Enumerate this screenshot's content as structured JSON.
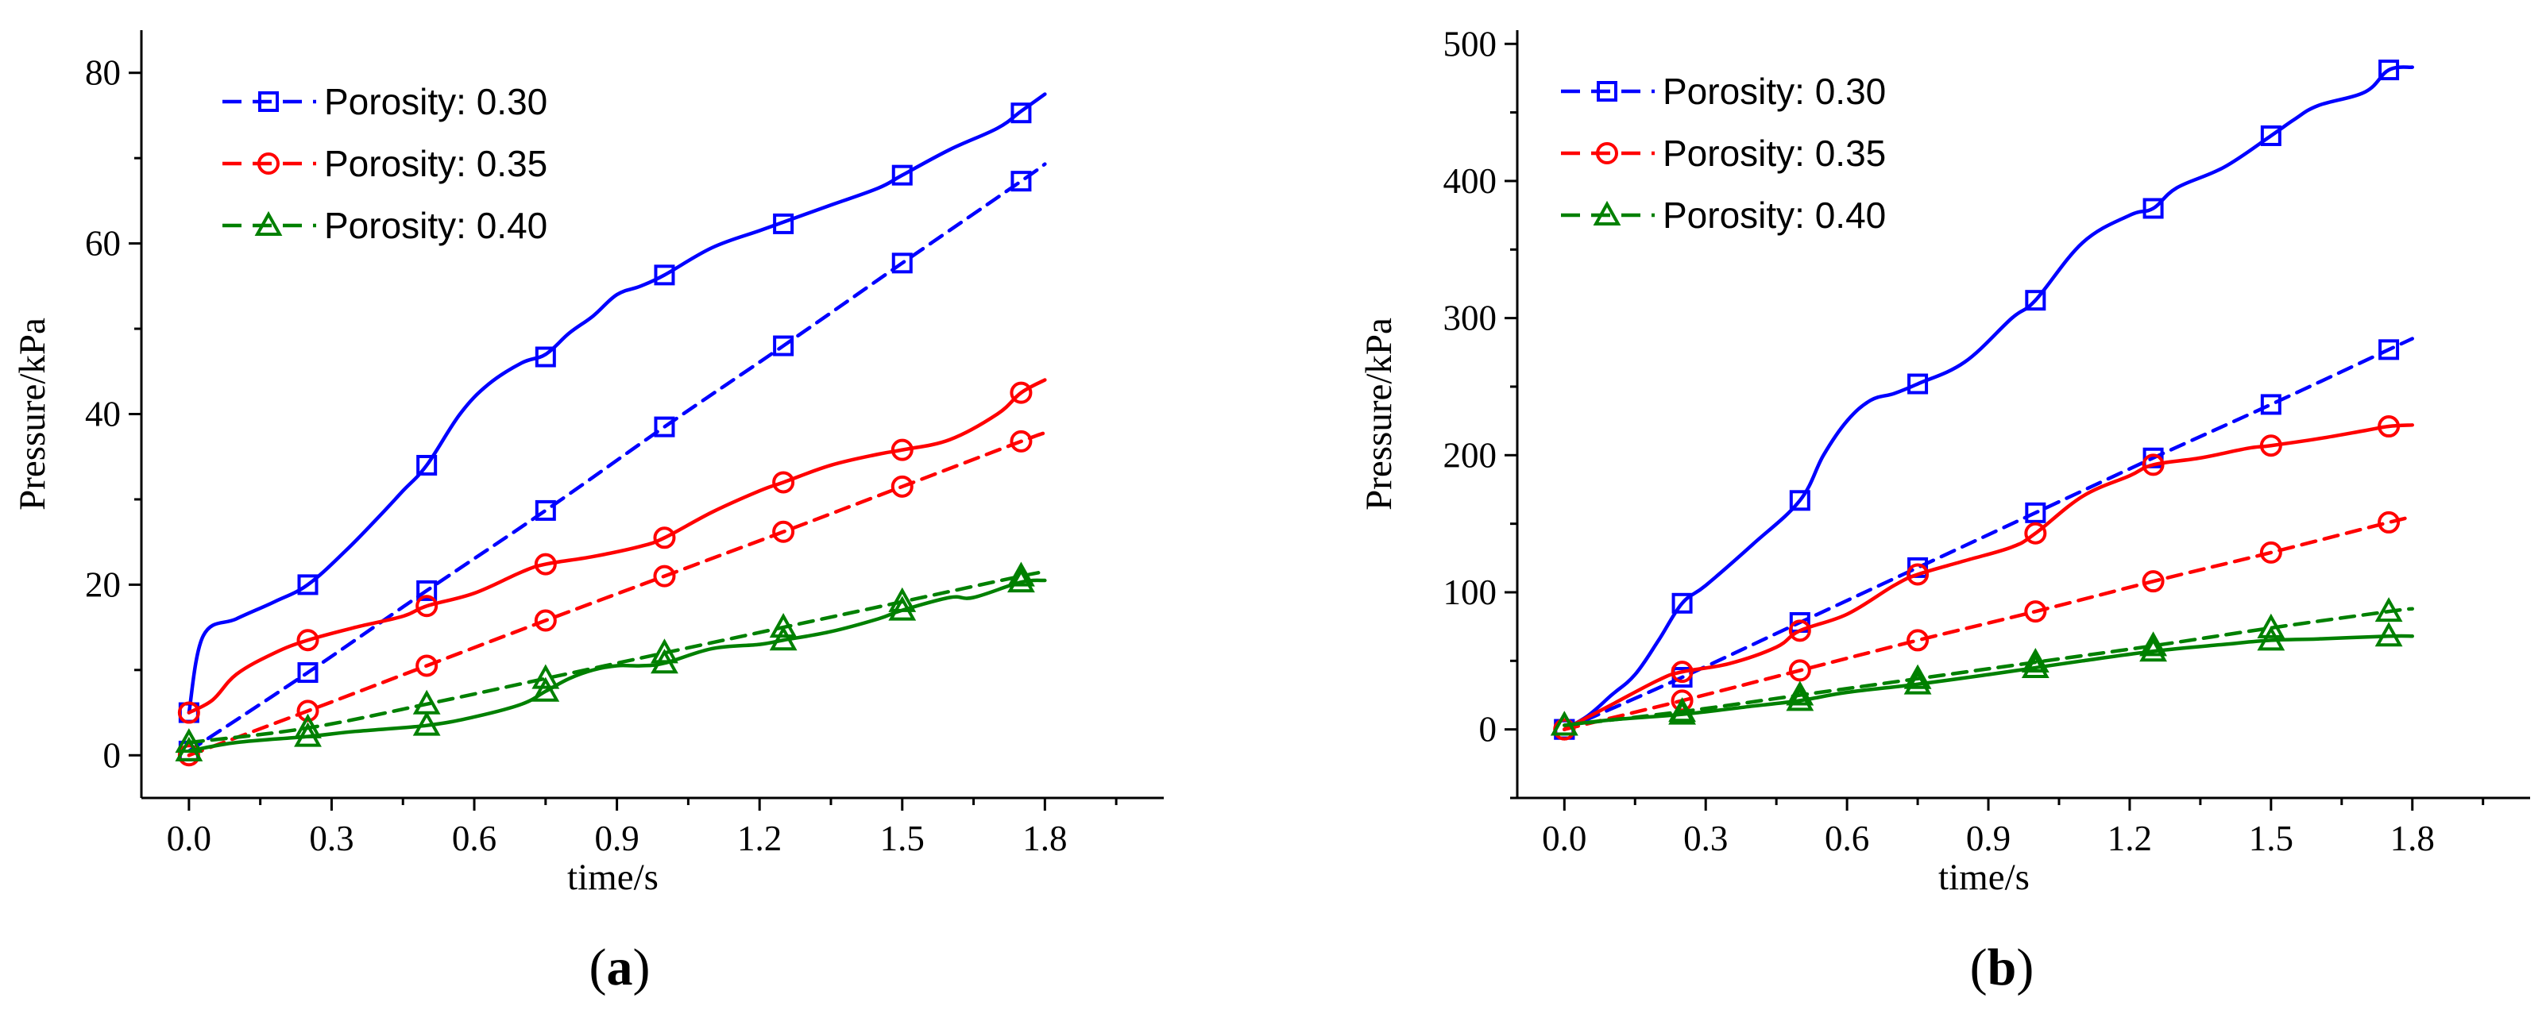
{
  "chart_data": [
    {
      "type": "line",
      "panel_label": "a",
      "xlabel": "time/s",
      "ylabel": "Pressure/kPa",
      "xlim": [
        -0.1,
        2.05
      ],
      "ylim": [
        -5,
        85
      ],
      "xticks": [
        0.0,
        0.3,
        0.6,
        0.9,
        1.2,
        1.5,
        1.8
      ],
      "xtick_labels": [
        "0.0",
        "0.3",
        "0.6",
        "0.9",
        "1.2",
        "1.5",
        "1.8"
      ],
      "yticks": [
        0,
        20,
        40,
        60,
        80
      ],
      "ytick_labels": [
        "0",
        "20",
        "40",
        "60",
        "80"
      ],
      "legend": [
        "Porosity: 0.30",
        "Porosity: 0.35",
        "Porosity: 0.40"
      ],
      "series": [
        {
          "name": "Porosity: 0.30",
          "style": "solid",
          "marker": "square",
          "color": "#0000ff",
          "x": [
            0.0,
            0.03,
            0.1,
            0.18,
            0.25,
            0.33,
            0.4,
            0.45,
            0.5,
            0.57,
            0.63,
            0.7,
            0.75,
            0.8,
            0.85,
            0.9,
            0.95,
            1.0,
            1.1,
            1.2,
            1.25,
            1.35,
            1.45,
            1.5,
            1.6,
            1.7,
            1.75,
            1.8
          ],
          "y": [
            5,
            14,
            16,
            18,
            20,
            24,
            28,
            31,
            34,
            40,
            43.5,
            46,
            47,
            49.5,
            51.5,
            54,
            55,
            56.3,
            59.5,
            61.5,
            62.5,
            64.5,
            66.5,
            68,
            71,
            73.5,
            75.5,
            77.5
          ],
          "marker_x": [
            0.0,
            0.25,
            0.5,
            0.75,
            1.0,
            1.25,
            1.5,
            1.75
          ],
          "marker_y": [
            5,
            20,
            34,
            46.7,
            56.3,
            62.3,
            68,
            75.3
          ]
        },
        {
          "name": "Porosity: 0.30",
          "style": "dashed",
          "marker": "square",
          "color": "#0000ff",
          "x": [
            0.0,
            0.25,
            0.5,
            0.75,
            1.0,
            1.25,
            1.5,
            1.75,
            1.8
          ],
          "y": [
            0.5,
            9.7,
            19.3,
            28.7,
            38.5,
            48,
            57.7,
            67.3,
            69.3
          ],
          "marker_x": [
            0.0,
            0.25,
            0.5,
            0.75,
            1.0,
            1.25,
            1.5,
            1.75
          ],
          "marker_y": [
            0.5,
            9.7,
            19.3,
            28.7,
            38.5,
            48,
            57.7,
            67.3
          ]
        },
        {
          "name": "Porosity: 0.35",
          "style": "solid",
          "marker": "circle",
          "color": "#ff0000",
          "x": [
            0.0,
            0.05,
            0.1,
            0.18,
            0.25,
            0.35,
            0.45,
            0.5,
            0.6,
            0.7,
            0.75,
            0.85,
            0.95,
            1.0,
            1.1,
            1.2,
            1.25,
            1.35,
            1.45,
            1.5,
            1.6,
            1.7,
            1.75,
            1.8
          ],
          "y": [
            5,
            6.5,
            9.5,
            12,
            13.5,
            15,
            16.3,
            17.5,
            19,
            21.5,
            22.4,
            23.3,
            24.5,
            25.5,
            28.5,
            31,
            32,
            34,
            35.3,
            35.8,
            37,
            40,
            42.5,
            44
          ],
          "marker_x": [
            0.0,
            0.25,
            0.5,
            0.75,
            1.0,
            1.25,
            1.5,
            1.75
          ],
          "marker_y": [
            5,
            13.5,
            17.5,
            22.4,
            25.5,
            32,
            35.8,
            42.5
          ]
        },
        {
          "name": "Porosity: 0.35",
          "style": "dashed",
          "marker": "circle",
          "color": "#ff0000",
          "x": [
            0.0,
            0.25,
            0.5,
            0.75,
            1.0,
            1.25,
            1.5,
            1.75,
            1.8
          ],
          "y": [
            0,
            5.2,
            10.5,
            15.8,
            21,
            26.2,
            31.5,
            36.8,
            37.8
          ],
          "marker_x": [
            0.0,
            0.25,
            0.5,
            0.75,
            1.0,
            1.25,
            1.5,
            1.75
          ],
          "marker_y": [
            0,
            5.2,
            10.5,
            15.8,
            21,
            26.2,
            31.5,
            36.8
          ]
        },
        {
          "name": "Porosity: 0.40",
          "style": "solid",
          "marker": "triangle",
          "color": "#008000",
          "x": [
            0.0,
            0.1,
            0.25,
            0.35,
            0.5,
            0.6,
            0.7,
            0.75,
            0.8,
            0.85,
            0.9,
            0.95,
            1.0,
            1.1,
            1.2,
            1.25,
            1.35,
            1.45,
            1.5,
            1.6,
            1.65,
            1.75,
            1.8
          ],
          "y": [
            0.5,
            1.5,
            2.2,
            2.8,
            3.5,
            4.5,
            6,
            7.5,
            9,
            10,
            10.5,
            10.5,
            10.8,
            12.5,
            13,
            13.5,
            14.5,
            16,
            17,
            18.5,
            18.5,
            20.3,
            20.5
          ],
          "marker_x": [
            0.0,
            0.25,
            0.5,
            0.75,
            1.0,
            1.25,
            1.5,
            1.75
          ],
          "marker_y": [
            0.5,
            2.2,
            3.5,
            7.5,
            10.8,
            13.5,
            17,
            20.3
          ]
        },
        {
          "name": "Porosity: 0.40",
          "style": "dashed",
          "marker": "triangle",
          "color": "#008000",
          "x": [
            0.0,
            0.25,
            0.5,
            0.75,
            1.0,
            1.25,
            1.5,
            1.75,
            1.8
          ],
          "y": [
            1.5,
            3.2,
            6,
            9,
            12,
            15,
            18,
            21,
            21.5
          ],
          "marker_x": [
            0.0,
            0.25,
            0.5,
            0.75,
            1.0,
            1.25,
            1.5,
            1.75
          ],
          "marker_y": [
            1.5,
            3.2,
            6,
            9,
            12,
            15,
            18,
            21
          ]
        }
      ]
    },
    {
      "type": "line",
      "panel_label": "b",
      "xlabel": "time/s",
      "ylabel": "Pressure/kPa",
      "xlim": [
        -0.1,
        2.05
      ],
      "ylim": [
        -50,
        510
      ],
      "xticks": [
        0.0,
        0.3,
        0.6,
        0.9,
        1.2,
        1.5,
        1.8
      ],
      "xtick_labels": [
        "0.0",
        "0.3",
        "0.6",
        "0.9",
        "1.2",
        "1.5",
        "1.8"
      ],
      "yticks": [
        0,
        100,
        200,
        300,
        400,
        500
      ],
      "ytick_labels": [
        "0",
        "100",
        "200",
        "300",
        "400",
        "500"
      ],
      "legend": [
        "Porosity: 0.30",
        "Porosity: 0.35",
        "Porosity: 0.40"
      ],
      "series": [
        {
          "name": "Porosity: 0.30",
          "style": "solid",
          "marker": "square",
          "color": "#0000ff",
          "x": [
            0.0,
            0.05,
            0.1,
            0.15,
            0.2,
            0.25,
            0.3,
            0.4,
            0.5,
            0.55,
            0.6,
            0.65,
            0.7,
            0.75,
            0.85,
            0.95,
            1.0,
            1.1,
            1.2,
            1.25,
            1.3,
            1.4,
            1.5,
            1.55,
            1.6,
            1.7,
            1.75,
            1.8
          ],
          "y": [
            0,
            10,
            25,
            40,
            65,
            92,
            105,
            135,
            167,
            200,
            225,
            240,
            245,
            252,
            268,
            300,
            313,
            355,
            375,
            380,
            395,
            410,
            433,
            445,
            455,
            465,
            481,
            483
          ],
          "marker_x": [
            0.0,
            0.25,
            0.5,
            0.75,
            1.0,
            1.25,
            1.5,
            1.75
          ],
          "marker_y": [
            0,
            92,
            167,
            252,
            313,
            380,
            433,
            481
          ]
        },
        {
          "name": "Porosity: 0.30",
          "style": "dashed",
          "marker": "square",
          "color": "#0000ff",
          "x": [
            0.0,
            0.25,
            0.5,
            0.75,
            1.0,
            1.25,
            1.5,
            1.75,
            1.8
          ],
          "y": [
            0,
            38,
            78,
            118,
            158,
            198,
            237,
            277,
            285
          ],
          "marker_x": [
            0.0,
            0.25,
            0.5,
            0.75,
            1.0,
            1.25,
            1.5,
            1.75
          ],
          "marker_y": [
            0,
            38,
            78,
            118,
            158,
            198,
            237,
            277
          ]
        },
        {
          "name": "Porosity: 0.35",
          "style": "solid",
          "marker": "circle",
          "color": "#ff0000",
          "x": [
            0.0,
            0.1,
            0.2,
            0.25,
            0.35,
            0.45,
            0.5,
            0.6,
            0.7,
            0.75,
            0.85,
            0.95,
            1.0,
            1.1,
            1.2,
            1.25,
            1.35,
            1.45,
            1.5,
            1.6,
            1.7,
            1.75,
            1.8
          ],
          "y": [
            0,
            18,
            36,
            42,
            48,
            60,
            72,
            84,
            105,
            113,
            123,
            133,
            143,
            170,
            185,
            193,
            198,
            205,
            207,
            212,
            218,
            221,
            222
          ],
          "marker_x": [
            0.0,
            0.25,
            0.5,
            0.75,
            1.0,
            1.25,
            1.5,
            1.75
          ],
          "marker_y": [
            0,
            42,
            72,
            113,
            143,
            193,
            207,
            221
          ]
        },
        {
          "name": "Porosity: 0.35",
          "style": "dashed",
          "marker": "circle",
          "color": "#ff0000",
          "x": [
            0.0,
            0.25,
            0.5,
            0.75,
            1.0,
            1.25,
            1.5,
            1.75,
            1.8
          ],
          "y": [
            0,
            21,
            43,
            65,
            86,
            108,
            129,
            151,
            155
          ],
          "marker_x": [
            0.0,
            0.25,
            0.5,
            0.75,
            1.0,
            1.25,
            1.5,
            1.75
          ],
          "marker_y": [
            0,
            21,
            43,
            65,
            86,
            108,
            129,
            151
          ]
        },
        {
          "name": "Porosity: 0.40",
          "style": "solid",
          "marker": "triangle",
          "color": "#008000",
          "x": [
            0.0,
            0.1,
            0.25,
            0.4,
            0.5,
            0.6,
            0.75,
            0.9,
            1.0,
            1.1,
            1.25,
            1.4,
            1.5,
            1.6,
            1.75,
            1.8
          ],
          "y": [
            3,
            7,
            11,
            17,
            21,
            27,
            33,
            40,
            45,
            50,
            57,
            62,
            65,
            66,
            68,
            68
          ],
          "marker_x": [
            0.0,
            0.25,
            0.5,
            0.75,
            1.0,
            1.25,
            1.5,
            1.75
          ],
          "marker_y": [
            3,
            11,
            21,
            33,
            45,
            57,
            65,
            68
          ]
        },
        {
          "name": "Porosity: 0.40",
          "style": "dashed",
          "marker": "triangle",
          "color": "#008000",
          "x": [
            0.0,
            0.25,
            0.5,
            0.75,
            1.0,
            1.25,
            1.5,
            1.75,
            1.8
          ],
          "y": [
            3,
            13,
            25,
            37,
            49,
            61,
            74,
            86,
            88
          ],
          "marker_x": [
            0.0,
            0.25,
            0.5,
            0.75,
            1.0,
            1.25,
            1.5,
            1.75
          ],
          "marker_y": [
            3,
            13,
            25,
            37,
            49,
            61,
            74,
            86
          ]
        }
      ]
    }
  ]
}
